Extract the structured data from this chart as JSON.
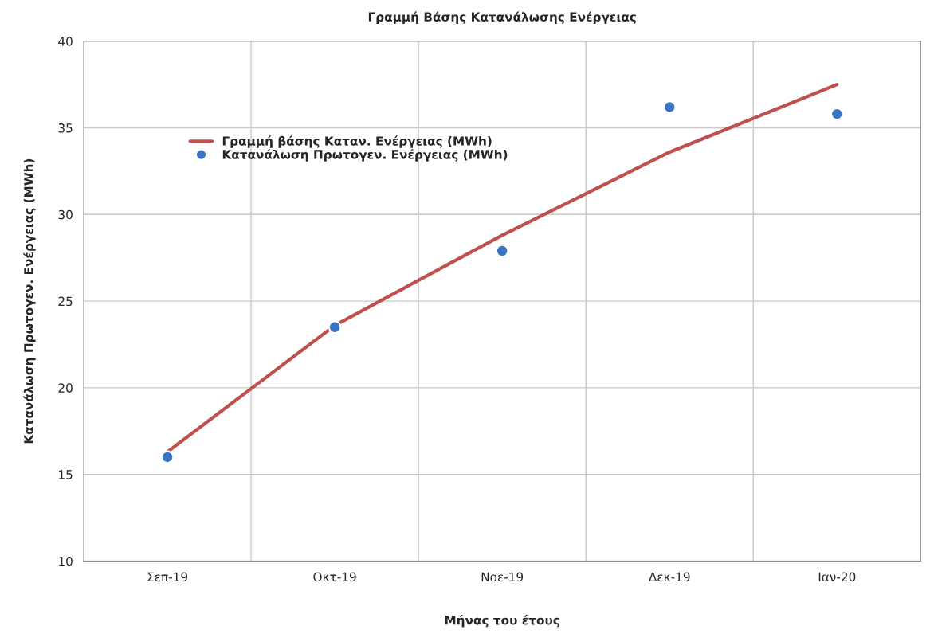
{
  "chart_data": {
    "type": "line",
    "title": "Γραμμή Βάσης Κατανάλωσης Ενέργειας",
    "xlabel": "Μήνας του έτους",
    "ylabel": "Κατανάλωση Πρωτογεν. Ενέργειας (MWh)",
    "categories": [
      "Σεπ-19",
      "Οκτ-19",
      "Νοε-19",
      "Δεκ-19",
      "Ιαν-20"
    ],
    "series": [
      {
        "name": "Γραμμή βάσης Καταν. Ενέργειας (MWh)",
        "color": "#c0504d",
        "values": [
          16.3,
          23.6,
          28.8,
          33.6,
          37.5
        ]
      },
      {
        "name": "Κατανάλωση Πρωτογεν. Ενέργειας (MWh)",
        "type": "scatter",
        "marker": "circle",
        "color": "#3a75c4",
        "values": [
          16.0,
          23.5,
          27.9,
          36.2,
          35.8
        ]
      }
    ],
    "ylim": [
      10,
      40
    ],
    "yticks": [
      10,
      15,
      20,
      25,
      30,
      35,
      40
    ],
    "grid": true,
    "legend": "top left"
  }
}
